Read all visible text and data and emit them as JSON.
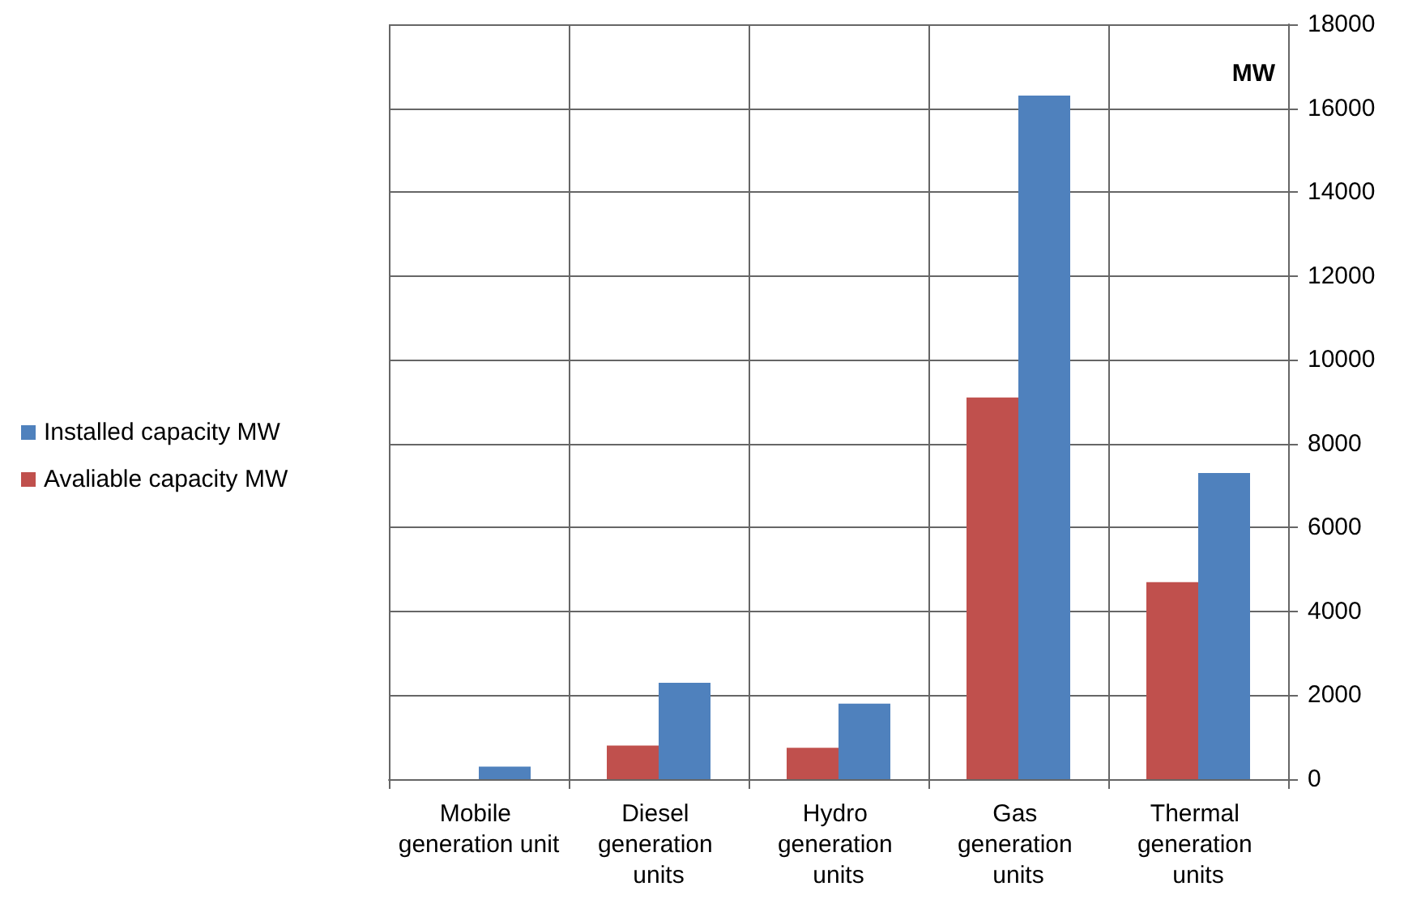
{
  "chart_data": {
    "type": "bar",
    "ylabel": "MW",
    "categories": [
      "Mobile generation unit",
      "Diesel generation units",
      "Hydro generation units",
      "Gas generation units",
      "Thermal generation units"
    ],
    "series": [
      {
        "name": "Avaliable capacity MW",
        "color": "#c0504d",
        "values": [
          null,
          800,
          750,
          9100,
          4700
        ]
      },
      {
        "name": "Installed capacity MW",
        "color": "#4f81bd",
        "values": [
          300,
          2300,
          1800,
          16300,
          7300
        ]
      }
    ],
    "ylim": [
      0,
      18000
    ],
    "yticks": [
      0,
      2000,
      4000,
      6000,
      8000,
      10000,
      12000,
      14000,
      16000,
      18000
    ],
    "grid": true,
    "legend": "left"
  }
}
